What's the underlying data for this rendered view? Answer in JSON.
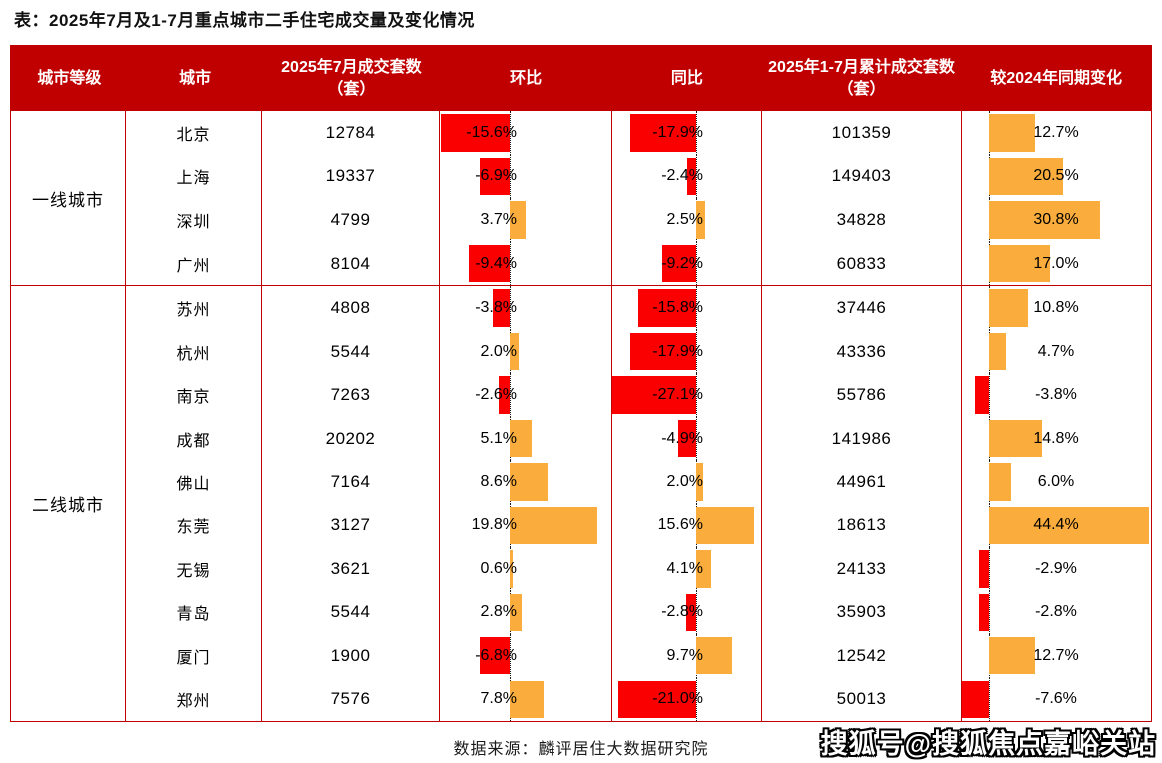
{
  "title": "表：2025年7月及1-7月重点城市二手住宅成交量及变化情况",
  "source_note": "数据来源：麟评居住大数据研究院",
  "watermark": "搜狐号@搜狐焦点嘉峪关站",
  "colors": {
    "header_bg": "#c00000",
    "border": "#c00000",
    "negative_bar": "#fb0000",
    "positive_bar": "#faad3c"
  },
  "table": {
    "headers": [
      "城市等级",
      "城市",
      "2025年7月成交套数（套）",
      "环比",
      "同比",
      "2025年1-7月累计成交套数（套）",
      "较2024年同期变化"
    ],
    "tiers": [
      {
        "label": "一线城市",
        "rows": [
          {
            "city": "北京",
            "jul_units": 12784,
            "mom_pct": -15.6,
            "yoy_pct": -17.9,
            "cum_units": 101359,
            "vs2024_pct": 12.7
          },
          {
            "city": "上海",
            "jul_units": 19337,
            "mom_pct": -6.9,
            "yoy_pct": -2.4,
            "cum_units": 149403,
            "vs2024_pct": 20.5
          },
          {
            "city": "深圳",
            "jul_units": 4799,
            "mom_pct": 3.7,
            "yoy_pct": 2.5,
            "cum_units": 34828,
            "vs2024_pct": 30.8
          },
          {
            "city": "广州",
            "jul_units": 8104,
            "mom_pct": -9.4,
            "yoy_pct": -9.2,
            "cum_units": 60833,
            "vs2024_pct": 17.0
          }
        ]
      },
      {
        "label": "二线城市",
        "rows": [
          {
            "city": "苏州",
            "jul_units": 4808,
            "mom_pct": -3.8,
            "yoy_pct": -15.8,
            "cum_units": 37446,
            "vs2024_pct": 10.8
          },
          {
            "city": "杭州",
            "jul_units": 5544,
            "mom_pct": 2.0,
            "yoy_pct": -17.9,
            "cum_units": 43336,
            "vs2024_pct": 4.7
          },
          {
            "city": "南京",
            "jul_units": 7263,
            "mom_pct": -2.6,
            "yoy_pct": -27.1,
            "cum_units": 55786,
            "vs2024_pct": -3.8
          },
          {
            "city": "成都",
            "jul_units": 20202,
            "mom_pct": 5.1,
            "yoy_pct": -4.9,
            "cum_units": 141986,
            "vs2024_pct": 14.8
          },
          {
            "city": "佛山",
            "jul_units": 7164,
            "mom_pct": 8.6,
            "yoy_pct": 2.0,
            "cum_units": 44961,
            "vs2024_pct": 6.0
          },
          {
            "city": "东莞",
            "jul_units": 3127,
            "mom_pct": 19.8,
            "yoy_pct": 15.6,
            "cum_units": 18613,
            "vs2024_pct": 44.4
          },
          {
            "city": "无锡",
            "jul_units": 3621,
            "mom_pct": 0.6,
            "yoy_pct": 4.1,
            "cum_units": 24133,
            "vs2024_pct": -2.9
          },
          {
            "city": "青岛",
            "jul_units": 5544,
            "mom_pct": 2.8,
            "yoy_pct": -2.8,
            "cum_units": 35903,
            "vs2024_pct": -2.8
          },
          {
            "city": "厦门",
            "jul_units": 1900,
            "mom_pct": -6.8,
            "yoy_pct": 9.7,
            "cum_units": 12542,
            "vs2024_pct": 12.7
          },
          {
            "city": "郑州",
            "jul_units": 7576,
            "mom_pct": 7.8,
            "yoy_pct": -21.0,
            "cum_units": 50013,
            "vs2024_pct": -7.6
          }
        ]
      }
    ]
  },
  "chart_data": {
    "type": "table",
    "title": "表：2025年7月及1-7月重点城市二手住宅成交量及变化情况",
    "columns": [
      "城市等级",
      "城市",
      "2025年7月成交套数（套）",
      "环比",
      "同比",
      "2025年1-7月累计成交套数（套）",
      "较2024年同期变化"
    ],
    "bar_columns": [
      "环比",
      "同比",
      "较2024年同期变化"
    ],
    "bar_color_rule": "positive=orange #faad3c, negative=red #fb0000, bars grow from dotted zero baseline",
    "rows": [
      [
        "一线城市",
        "北京",
        12784,
        -15.6,
        -17.9,
        101359,
        12.7
      ],
      [
        "一线城市",
        "上海",
        19337,
        -6.9,
        -2.4,
        149403,
        20.5
      ],
      [
        "一线城市",
        "深圳",
        4799,
        3.7,
        2.5,
        34828,
        30.8
      ],
      [
        "一线城市",
        "广州",
        8104,
        -9.4,
        -9.2,
        60833,
        17.0
      ],
      [
        "二线城市",
        "苏州",
        4808,
        -3.8,
        -15.8,
        37446,
        10.8
      ],
      [
        "二线城市",
        "杭州",
        5544,
        2.0,
        -17.9,
        43336,
        4.7
      ],
      [
        "二线城市",
        "南京",
        7263,
        -2.6,
        -27.1,
        55786,
        -3.8
      ],
      [
        "二线城市",
        "成都",
        20202,
        5.1,
        -4.9,
        141986,
        14.8
      ],
      [
        "二线城市",
        "佛山",
        7164,
        8.6,
        2.0,
        44961,
        6.0
      ],
      [
        "二线城市",
        "东莞",
        3127,
        19.8,
        15.6,
        18613,
        44.4
      ],
      [
        "二线城市",
        "无锡",
        3621,
        0.6,
        4.1,
        24133,
        -2.9
      ],
      [
        "二线城市",
        "青岛",
        5544,
        2.8,
        -2.8,
        35903,
        -2.8
      ],
      [
        "二线城市",
        "厦门",
        1900,
        -6.8,
        9.7,
        12542,
        12.7
      ],
      [
        "二线城市",
        "郑州",
        7576,
        7.8,
        -21.0,
        50013,
        -7.6
      ]
    ],
    "source_note": "数据来源：麟评居住大数据研究院"
  }
}
